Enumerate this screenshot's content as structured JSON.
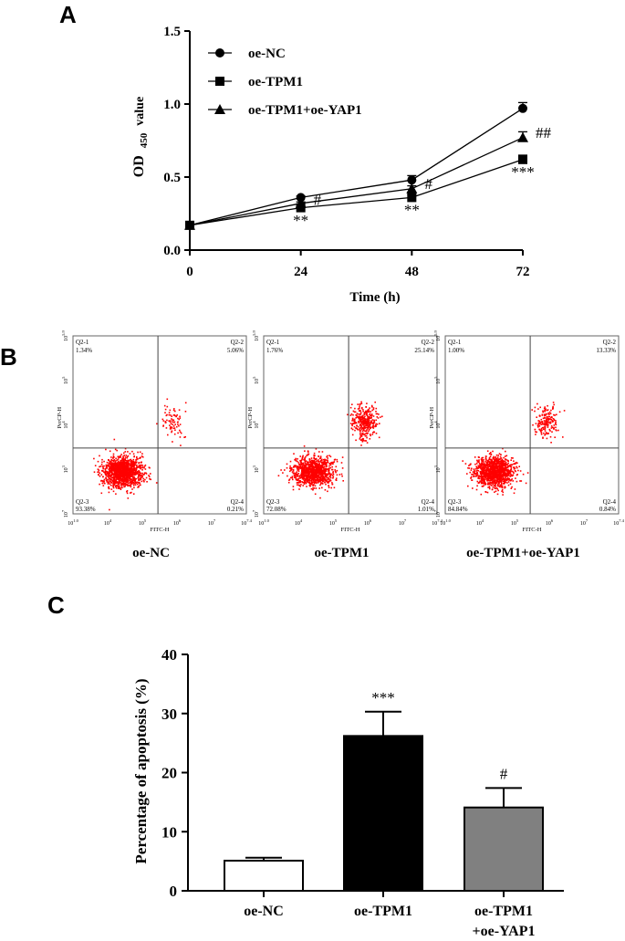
{
  "panels": {
    "a": "A",
    "b": "B",
    "c": "C"
  },
  "chart_data": [
    {
      "type": "line",
      "panel": "A",
      "xlabel": "Time (h)",
      "ylabel": {
        "prefix": "OD",
        "subscript": "450",
        "suffix": "value"
      },
      "x_ticks": [
        "0",
        "24",
        "48",
        "72"
      ],
      "y_ticks": [
        "0.0",
        "0.5",
        "1.0",
        "1.5"
      ],
      "xlim": [
        0,
        72
      ],
      "ylim": [
        0,
        1.5
      ],
      "legend_position": "top-left",
      "series": [
        {
          "name": "oe-NC",
          "marker": "circle",
          "x": [
            0,
            24,
            48,
            72
          ],
          "y": [
            0.17,
            0.36,
            0.48,
            0.97
          ],
          "err": [
            0.01,
            0.01,
            0.03,
            0.04
          ]
        },
        {
          "name": "oe-TPM1",
          "marker": "square",
          "x": [
            0,
            24,
            48,
            72
          ],
          "y": [
            0.17,
            0.29,
            0.36,
            0.62
          ],
          "err": [
            0.01,
            0.01,
            0.02,
            0.03
          ]
        },
        {
          "name": "oe-TPM1+oe-YAP1",
          "marker": "triangle",
          "x": [
            0,
            24,
            48,
            72
          ],
          "y": [
            0.17,
            0.32,
            0.42,
            0.77
          ],
          "err": [
            0.01,
            0.01,
            0.02,
            0.04
          ]
        }
      ],
      "annotations": [
        {
          "text": "**",
          "x": 24,
          "y": 0.17
        },
        {
          "text": "#",
          "x": 24,
          "y": 0.31
        },
        {
          "text": "**",
          "x": 48,
          "y": 0.24
        },
        {
          "text": "#",
          "x": 48,
          "y": 0.42
        },
        {
          "text": "***",
          "x": 72,
          "y": 0.5
        },
        {
          "text": "##",
          "x": 72,
          "y": 0.77
        }
      ]
    },
    {
      "type": "scatter",
      "panel": "B",
      "plots": [
        {
          "caption": "oe-NC",
          "xlabel": "FITC-H",
          "ylabel": "PerCP-H",
          "quadrants": {
            "q1": {
              "name": "Q2-1",
              "pct": "1.34%"
            },
            "q2": {
              "name": "Q2-2",
              "pct": "5.06%"
            },
            "q3": {
              "name": "Q2-3",
              "pct": "93.38%"
            },
            "q4": {
              "name": "Q2-4",
              "pct": "0.21%"
            }
          },
          "x_ticks": [
            "10^1.0",
            "10^4",
            "10^5",
            "10^6",
            "10^7",
            "10^7.4"
          ],
          "y_ticks": [
            "10^7",
            "10^3",
            "10^4",
            "10^5",
            "10^5.9"
          ]
        },
        {
          "caption": "oe-TPM1",
          "xlabel": "FITC-H",
          "ylabel": "PerCP-H",
          "quadrants": {
            "q1": {
              "name": "Q2-1",
              "pct": "1.76%"
            },
            "q2": {
              "name": "Q2-2",
              "pct": "25.14%"
            },
            "q3": {
              "name": "Q2-3",
              "pct": "72.08%"
            },
            "q4": {
              "name": "Q2-4",
              "pct": "1.01%"
            }
          },
          "x_ticks": [
            "10^1.0",
            "10^4",
            "10^5",
            "10^6",
            "10^7",
            "10^7.4"
          ],
          "y_ticks": [
            "10^7",
            "10^3",
            "10^4",
            "10^5",
            "10^5.9"
          ]
        },
        {
          "caption": "oe-TPM1+oe-YAP1",
          "xlabel": "FITC-H",
          "ylabel": "PerCP-H",
          "quadrants": {
            "q1": {
              "name": "Q2-1",
              "pct": "1.00%"
            },
            "q2": {
              "name": "Q2-2",
              "pct": "13.33%"
            },
            "q3": {
              "name": "Q2-3",
              "pct": "84.84%"
            },
            "q4": {
              "name": "Q2-4",
              "pct": "0.84%"
            }
          },
          "x_ticks": [
            "10^1.0",
            "10^4",
            "10^5",
            "10^6",
            "10^7",
            "10^7.4"
          ],
          "y_ticks": [
            "10^7",
            "10^3",
            "10^4",
            "10^5",
            "10^5.9"
          ]
        }
      ],
      "point_color": "#ff0000"
    },
    {
      "type": "bar",
      "panel": "C",
      "ylabel": "Percentage of apoptosis (%)",
      "categories": [
        [
          "oe-NC"
        ],
        [
          "oe-TPM1"
        ],
        [
          "oe-TPM1",
          "+oe-YAP1"
        ]
      ],
      "values": [
        5.1,
        26.2,
        14.1
      ],
      "errors": [
        0.5,
        4.1,
        3.3
      ],
      "fills": [
        "#ffffff",
        "#000000",
        "#808080"
      ],
      "annotations": [
        "",
        "***",
        "#"
      ],
      "y_ticks": [
        "0",
        "10",
        "20",
        "30",
        "40"
      ],
      "ylim": [
        0,
        40
      ]
    }
  ]
}
